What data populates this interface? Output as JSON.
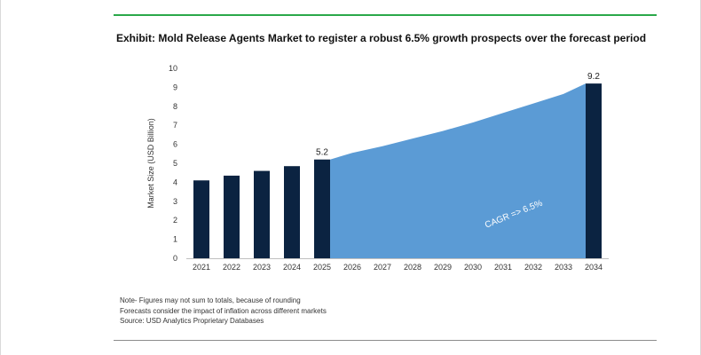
{
  "title": "Exhibit: Mold Release Agents Market to register a robust 6.5% growth prospects over the forecast period",
  "colors": {
    "accent_rule": "#2aa84a",
    "bar": "#0b2341",
    "area": "#5b9bd5",
    "annotation_text": "#ffffff"
  },
  "chart_data": {
    "type": "bar",
    "categories": [
      "2021",
      "2022",
      "2023",
      "2024",
      "2025",
      "2026",
      "2027",
      "2028",
      "2029",
      "2030",
      "2031",
      "2032",
      "2033",
      "2034"
    ],
    "values": [
      4.1,
      4.35,
      4.6,
      4.85,
      5.2,
      5.55,
      5.9,
      6.3,
      6.7,
      7.15,
      7.65,
      8.15,
      8.65,
      9.2
    ],
    "bar_categories": [
      "2021",
      "2022",
      "2023",
      "2024",
      "2025",
      "2034"
    ],
    "forecast_area": {
      "from": "2025",
      "to": "2034"
    },
    "data_labels": [
      {
        "category": "2025",
        "text": "5.2"
      },
      {
        "category": "2034",
        "text": "9.2"
      }
    ],
    "annotation": "CAGR =>  6.5%",
    "ylabel": "Market Size (USD Billion)",
    "xlabel": "",
    "ylim": [
      0,
      10
    ],
    "yticks": [
      "0",
      "1",
      "2",
      "3",
      "4",
      "5",
      "6",
      "7",
      "8",
      "9",
      "10"
    ],
    "grid": false,
    "legend": "none"
  },
  "notes": [
    "Note- Figures may not sum to totals, because of rounding",
    "Forecasts consider the impact of inflation across different markets",
    "Source: USD Analytics Proprietary Databases"
  ]
}
